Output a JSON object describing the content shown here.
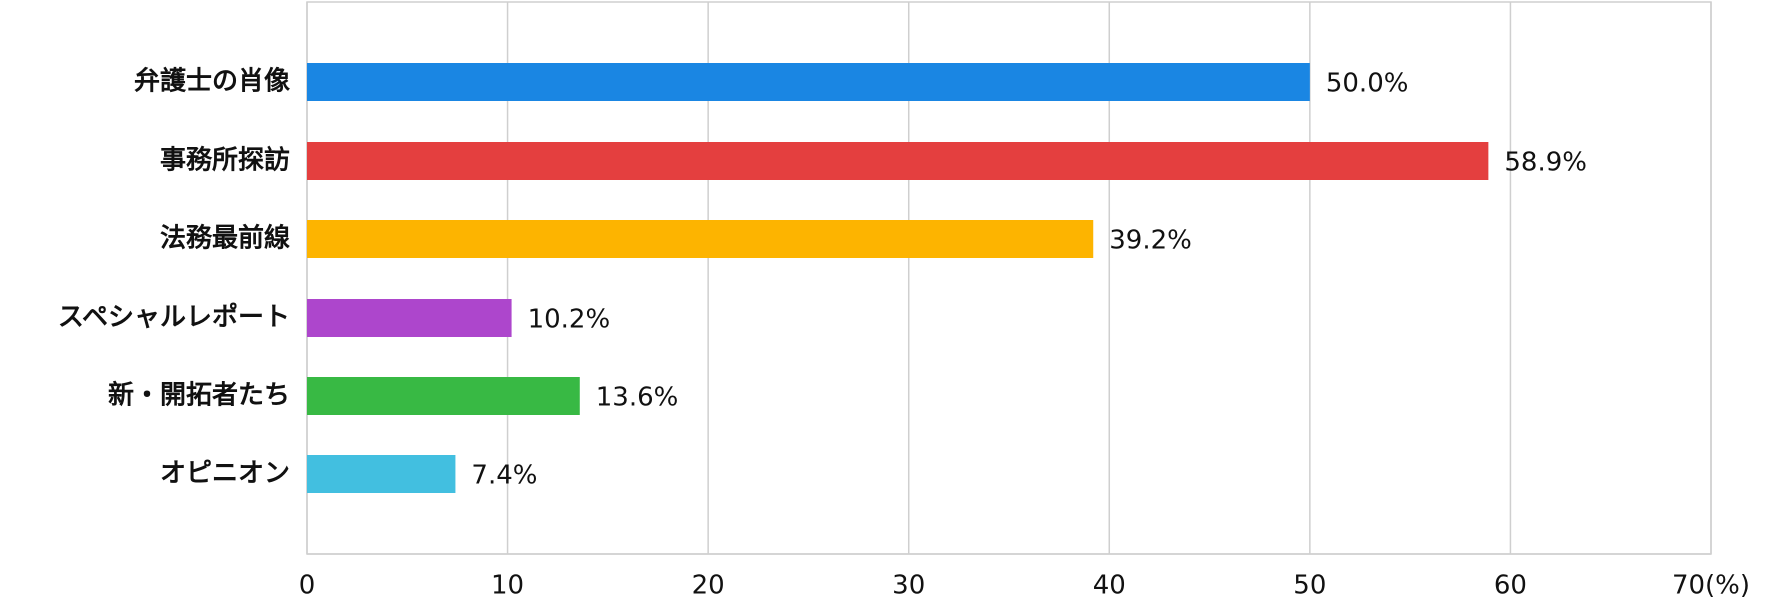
{
  "chart_data": {
    "type": "bar",
    "orientation": "horizontal",
    "categories": [
      "弁護士の肖像",
      "事務所探訪",
      "法務最前線",
      "スペシャルレポート",
      "新・開拓者たち",
      "オピニオン"
    ],
    "values": [
      50.0,
      58.9,
      39.2,
      10.2,
      13.6,
      7.4
    ],
    "value_labels": [
      "50.0%",
      "58.9%",
      "39.2%",
      "10.2%",
      "13.6%",
      "7.4%"
    ],
    "colors": [
      "#1a86e3",
      "#e43f3f",
      "#fdb400",
      "#ad46cc",
      "#38b944",
      "#42bfe0"
    ],
    "xlim": [
      0,
      70
    ],
    "xticks": [
      0,
      10,
      20,
      30,
      40,
      50,
      60,
      {
        "value": 70,
        "label": "70(%)"
      }
    ],
    "grid": true
  }
}
